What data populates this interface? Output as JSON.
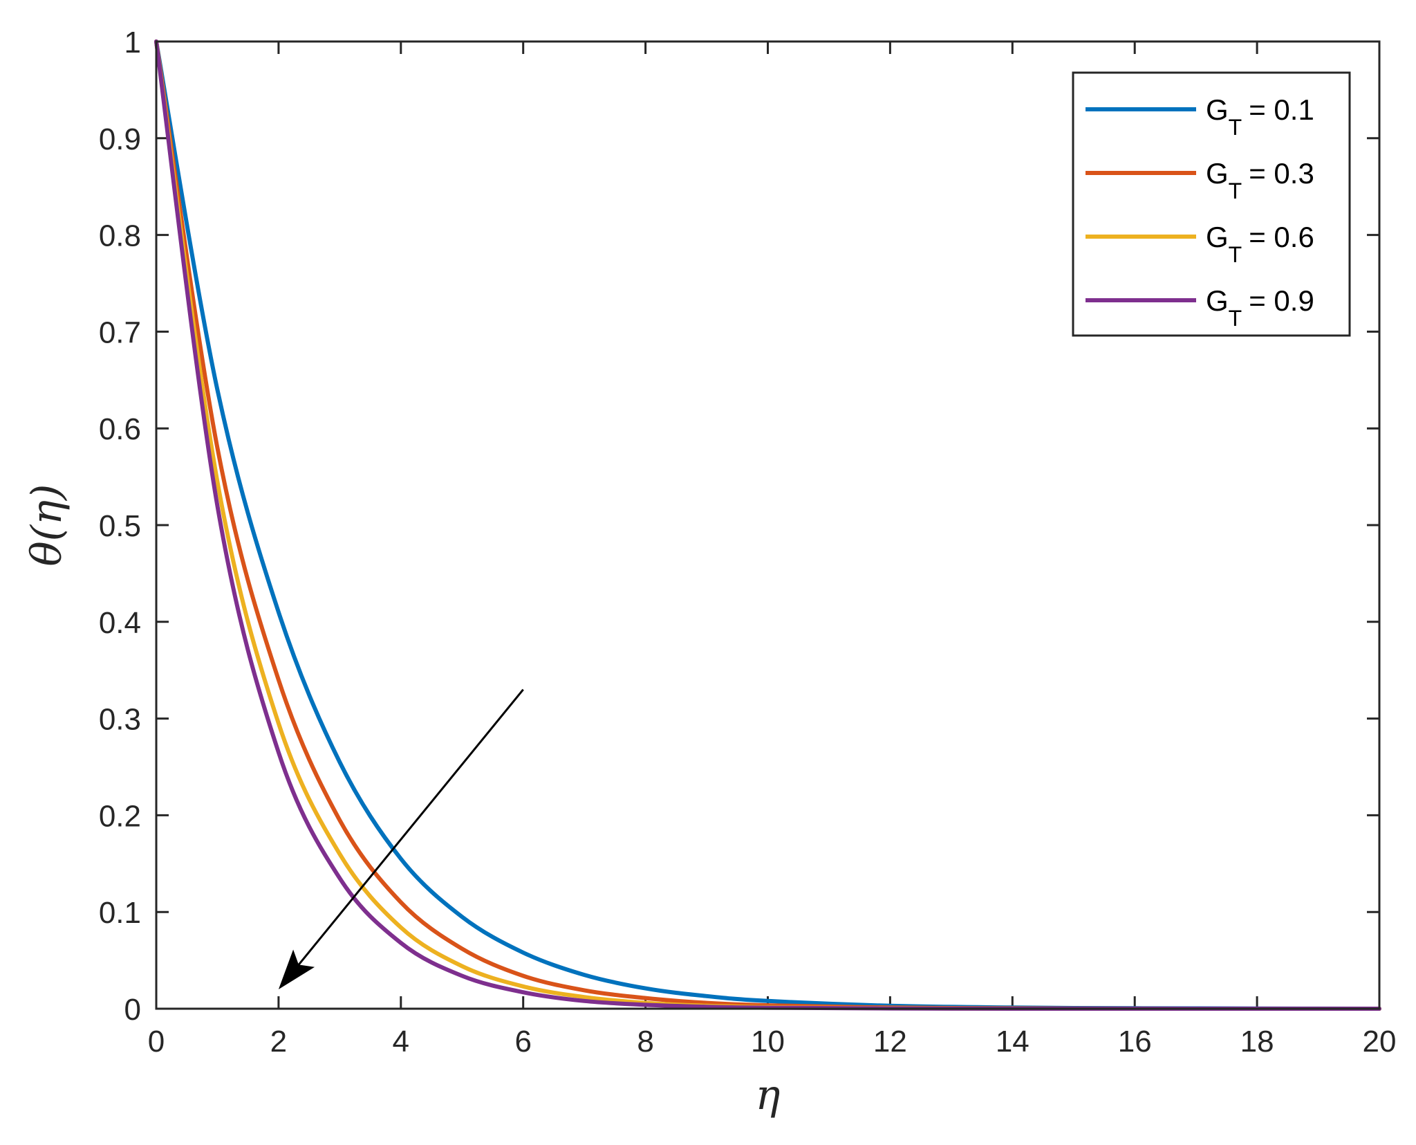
{
  "chart_data": {
    "type": "line",
    "xlabel": "η",
    "ylabel": "θ(η)",
    "xlim": [
      0,
      20
    ],
    "ylim": [
      0,
      1
    ],
    "xticks": [
      0,
      2,
      4,
      6,
      8,
      10,
      12,
      14,
      16,
      18,
      20
    ],
    "yticks": [
      0,
      0.1,
      0.2,
      0.3,
      0.4,
      0.5,
      0.6,
      0.7,
      0.8,
      0.9,
      1
    ],
    "xtick_labels": [
      "0",
      "2",
      "4",
      "6",
      "8",
      "10",
      "12",
      "14",
      "16",
      "18",
      "20"
    ],
    "ytick_labels": [
      "0",
      "0.1",
      "0.2",
      "0.3",
      "0.4",
      "0.5",
      "0.6",
      "0.7",
      "0.8",
      "0.9",
      "1"
    ],
    "grid": false,
    "legend_position": "top-right",
    "x": [
      0,
      1,
      2,
      3,
      4,
      5,
      6,
      7,
      8,
      9,
      10,
      12,
      14,
      16,
      18,
      20
    ],
    "series": [
      {
        "name_base": "G",
        "name_sub": "T",
        "name_value": "= 0.1",
        "color": "#0072BD",
        "values": [
          1.0,
          0.64,
          0.41,
          0.255,
          0.155,
          0.095,
          0.058,
          0.035,
          0.021,
          0.013,
          0.008,
          0.003,
          0.0012,
          0.0005,
          0.0002,
          0.0
        ]
      },
      {
        "name_base": "G",
        "name_sub": "T",
        "name_value": "= 0.3",
        "color": "#D95319",
        "values": [
          1.0,
          0.58,
          0.34,
          0.195,
          0.11,
          0.062,
          0.034,
          0.019,
          0.011,
          0.006,
          0.0035,
          0.0012,
          0.0004,
          0.0001,
          0.0,
          0.0
        ]
      },
      {
        "name_base": "G",
        "name_sub": "T",
        "name_value": "= 0.6",
        "color": "#EDB120",
        "values": [
          1.0,
          0.545,
          0.295,
          0.16,
          0.084,
          0.044,
          0.023,
          0.012,
          0.006,
          0.003,
          0.0016,
          0.0005,
          0.0001,
          0.0,
          0.0,
          0.0
        ]
      },
      {
        "name_base": "G",
        "name_sub": "T",
        "name_value": "= 0.9",
        "color": "#7E2F8E",
        "values": [
          1.0,
          0.52,
          0.265,
          0.135,
          0.068,
          0.034,
          0.017,
          0.008,
          0.004,
          0.002,
          0.001,
          0.0003,
          0.0,
          0.0,
          0.0,
          0.0
        ]
      }
    ],
    "annotations": [
      {
        "type": "arrow",
        "from": [
          6.0,
          0.33
        ],
        "to": [
          2.0,
          0.02
        ],
        "color": "#000000"
      }
    ]
  }
}
